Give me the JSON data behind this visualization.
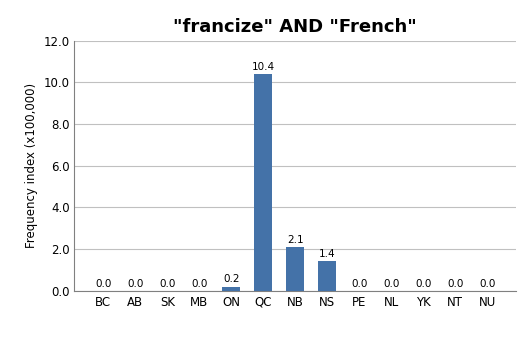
{
  "title": "\"francize\" AND \"French\"",
  "categories": [
    "BC",
    "AB",
    "SK",
    "MB",
    "ON",
    "QC",
    "NB",
    "NS",
    "PE",
    "NL",
    "YK",
    "NT",
    "NU"
  ],
  "values": [
    0.0,
    0.0,
    0.0,
    0.0,
    0.2,
    10.4,
    2.1,
    1.4,
    0.0,
    0.0,
    0.0,
    0.0,
    0.0
  ],
  "bar_color": "#4472a8",
  "ylabel": "Frequency index (x100,000)",
  "ylim": [
    0,
    12.0
  ],
  "yticks": [
    0.0,
    2.0,
    4.0,
    6.0,
    8.0,
    10.0,
    12.0
  ],
  "title_fontsize": 13,
  "axis_label_fontsize": 8.5,
  "tick_fontsize": 8.5,
  "bar_label_fontsize": 7.5,
  "grid_color": "#c0c0c0",
  "spine_color": "#808080"
}
